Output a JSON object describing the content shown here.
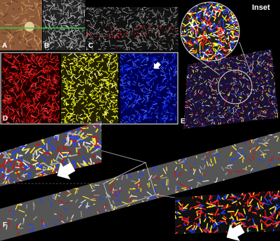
{
  "panels": [
    {
      "label": "A"
    },
    {
      "label": "B"
    },
    {
      "label": "C"
    },
    {
      "label": "D"
    },
    {
      "label": "E"
    },
    {
      "label": "F"
    }
  ],
  "inset": {
    "label": "Inset"
  }
}
